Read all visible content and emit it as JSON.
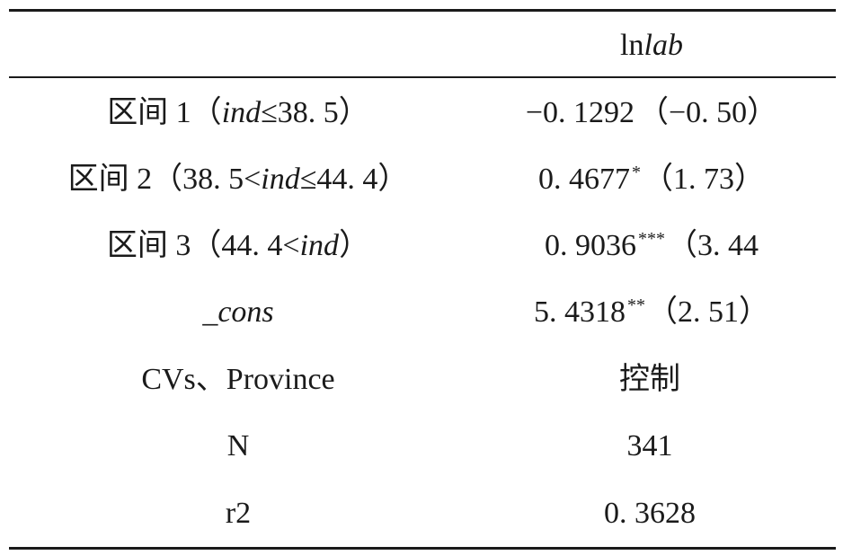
{
  "header": {
    "col2_prefix": "ln",
    "col2_italic": "lab"
  },
  "rows": [
    {
      "c1_pre": "区间 1（",
      "c1_ital": "ind",
      "c1_post": "≤38. 5）",
      "c2_val": "−0. 1292",
      "c2_star": "",
      "c2_t": "（−0. 50）"
    },
    {
      "c1_pre": "区间 2（38. 5<",
      "c1_ital": "ind",
      "c1_post": "≤44. 4）",
      "c2_val": "0. 4677",
      "c2_star": "*",
      "c2_t": "（1. 73）"
    },
    {
      "c1_pre": "区间 3（44. 4<",
      "c1_ital": "ind",
      "c1_post": "）",
      "c2_val": "0. 9036",
      "c2_star": "***",
      "c2_t": "（3. 44"
    },
    {
      "c1_pre": "",
      "c1_ital": "_cons",
      "c1_post": "",
      "c2_val": "5. 4318",
      "c2_star": "**",
      "c2_t": "（2. 51）"
    },
    {
      "c1_pre": "CVs、Province",
      "c1_ital": "",
      "c1_post": "",
      "c2_val": "控制",
      "c2_star": "",
      "c2_t": ""
    },
    {
      "c1_pre": "N",
      "c1_ital": "",
      "c1_post": "",
      "c2_val": "341",
      "c2_star": "",
      "c2_t": ""
    },
    {
      "c1_pre": "r2",
      "c1_ital": "",
      "c1_post": "",
      "c2_val": "0. 3628",
      "c2_star": "",
      "c2_t": ""
    }
  ]
}
